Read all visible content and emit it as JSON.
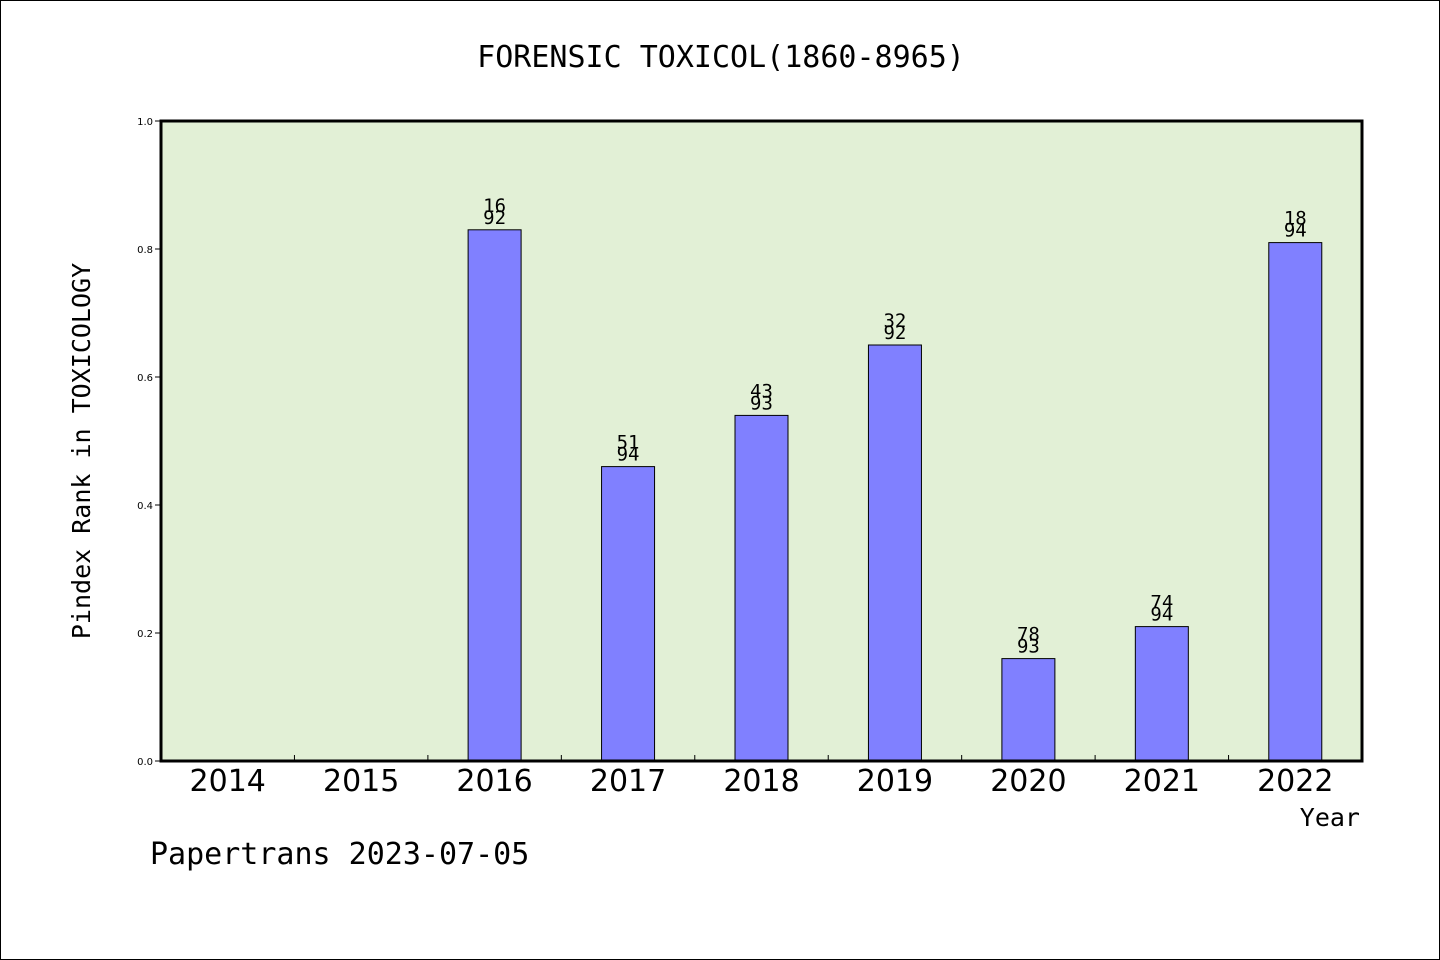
{
  "chart_data": {
    "type": "bar",
    "title": "FORENSIC TOXICOL(1860-8965)",
    "xlabel": "Year",
    "ylabel": "Pindex Rank in TOXICOLOGY",
    "ylim": [
      0,
      1.0
    ],
    "yticks": [
      "0.0",
      "0.2",
      "0.4",
      "0.6",
      "0.8",
      "1.0"
    ],
    "categories": [
      "2014",
      "2015",
      "2016",
      "2017",
      "2018",
      "2019",
      "2020",
      "2021",
      "2022"
    ],
    "values": [
      null,
      null,
      0.83,
      0.46,
      0.54,
      0.65,
      0.16,
      0.21,
      0.81
    ],
    "bar_labels": [
      null,
      null,
      [
        "16",
        "92"
      ],
      [
        "51",
        "94"
      ],
      [
        "43",
        "93"
      ],
      [
        "32",
        "92"
      ],
      [
        "78",
        "93"
      ],
      [
        "74",
        "94"
      ],
      [
        "18",
        "94"
      ]
    ],
    "grid": false,
    "colors": {
      "plot_background": "#e2f0d6",
      "bar_fill": "#8080ff",
      "bar_stroke": "#000000",
      "text": "#000000"
    }
  },
  "footer": {
    "watermark": "Papertrans 2023-07-05"
  }
}
